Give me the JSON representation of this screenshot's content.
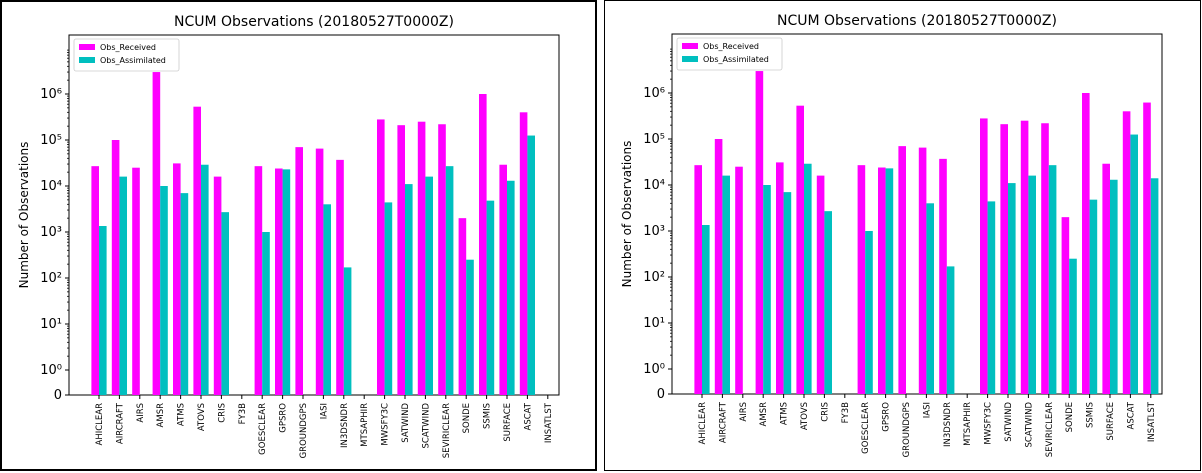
{
  "chart_data": [
    {
      "type": "bar",
      "title": "NCUM Observations (20180527T0000Z)",
      "xlabel": "",
      "ylabel": "Number of Observations",
      "y_scale": "symlog",
      "y_ticks": [
        "0",
        "10⁰",
        "10¹",
        "10²",
        "10³",
        "10⁴",
        "10⁵",
        "10⁶"
      ],
      "legend_position": "top-left",
      "categories": [
        "AHICLEAR",
        "AIRCRAFT",
        "AIRS",
        "AMSR",
        "ATMS",
        "ATOVS",
        "CRIS",
        "FY3B",
        "GOESCLEAR",
        "GPSRO",
        "GROUNDGPS",
        "IASI",
        "IN3DSNDR",
        "MTSAPHIR",
        "MWSFY3C",
        "SATWIND",
        "SCATWIND",
        "SEVIRICLEAR",
        "SONDE",
        "SSMIS",
        "SURFACE",
        "ASCAT",
        "INSATLST"
      ],
      "series": [
        {
          "name": "Obs_Received",
          "color": "#ff00ff",
          "values": [
            27000,
            100000,
            25000,
            3000000,
            31000,
            530000,
            16000,
            0,
            27000,
            24000,
            70000,
            65000,
            37000,
            0,
            280000,
            210000,
            250000,
            220000,
            2000,
            1000000,
            29000,
            400000,
            0
          ]
        },
        {
          "name": "Obs_Assimilated",
          "color": "#00bfbf",
          "values": [
            1350,
            16000,
            0,
            10000,
            7000,
            29000,
            2700,
            0,
            1000,
            23000,
            0,
            4000,
            170,
            0,
            4400,
            11000,
            16000,
            27000,
            250,
            4800,
            13000,
            125000,
            0
          ]
        }
      ]
    },
    {
      "type": "bar",
      "title": "NCUM Observations (20180527T0000Z)",
      "xlabel": "",
      "ylabel": "Number of Observations",
      "y_scale": "symlog",
      "y_ticks": [
        "0",
        "10⁰",
        "10¹",
        "10²",
        "10³",
        "10⁴",
        "10⁵",
        "10⁶"
      ],
      "legend_position": "top-left",
      "categories": [
        "AHICLEAR",
        "AIRCRAFT",
        "AIRS",
        "AMSR",
        "ATMS",
        "ATOVS",
        "CRIS",
        "FY3B",
        "GOESCLEAR",
        "GPSRO",
        "GROUNDGPS",
        "IASI",
        "IN3DSNDR",
        "MTSAPHIR",
        "MWSFY3C",
        "SATWIND",
        "SCATWIND",
        "SEVIRICLEAR",
        "SONDE",
        "SSMIS",
        "SURFACE",
        "ASCAT",
        "INSATLST"
      ],
      "series": [
        {
          "name": "Obs_Received",
          "color": "#ff00ff",
          "values": [
            27000,
            100000,
            25000,
            3000000,
            31000,
            530000,
            16000,
            0,
            27000,
            24000,
            70000,
            65000,
            37000,
            0,
            280000,
            210000,
            250000,
            220000,
            2000,
            1000000,
            29000,
            400000,
            620000
          ]
        },
        {
          "name": "Obs_Assimilated",
          "color": "#00bfbf",
          "values": [
            1350,
            16000,
            0,
            10000,
            7000,
            29000,
            2700,
            0,
            1000,
            23000,
            0,
            4000,
            170,
            0,
            4400,
            11000,
            16000,
            27000,
            250,
            4800,
            13000,
            125000,
            14000
          ]
        }
      ]
    }
  ]
}
